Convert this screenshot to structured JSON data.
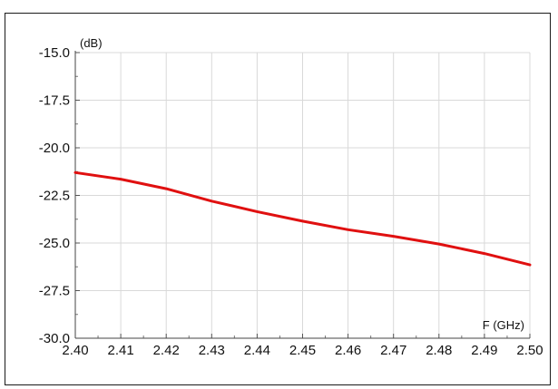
{
  "chart_data": {
    "type": "line",
    "title": "",
    "xlabel": "F (GHz)",
    "ylabel": "(dB)",
    "xlim": [
      2.4,
      2.5
    ],
    "ylim": [
      -30.0,
      -15.0
    ],
    "x_ticks": [
      "2.40",
      "2.41",
      "2.42",
      "2.43",
      "2.44",
      "2.45",
      "2.46",
      "2.47",
      "2.48",
      "2.49",
      "2.50"
    ],
    "y_ticks": [
      "-15.0",
      "-17.5",
      "-20.0",
      "-22.5",
      "-25.0",
      "-27.5",
      "-30.0"
    ],
    "x_tick_values": [
      2.4,
      2.41,
      2.42,
      2.43,
      2.44,
      2.45,
      2.46,
      2.47,
      2.48,
      2.49,
      2.5
    ],
    "y_tick_values": [
      -15.0,
      -17.5,
      -20.0,
      -22.5,
      -25.0,
      -27.5,
      -30.0
    ],
    "grid": true,
    "legend": "none",
    "series": [
      {
        "color": "#e01010",
        "x": [
          2.4,
          2.41,
          2.42,
          2.43,
          2.44,
          2.45,
          2.46,
          2.47,
          2.48,
          2.49,
          2.5
        ],
        "y": [
          -21.3,
          -21.65,
          -22.15,
          -22.8,
          -23.35,
          -23.85,
          -24.3,
          -24.65,
          -25.05,
          -25.55,
          -26.15
        ]
      }
    ]
  }
}
